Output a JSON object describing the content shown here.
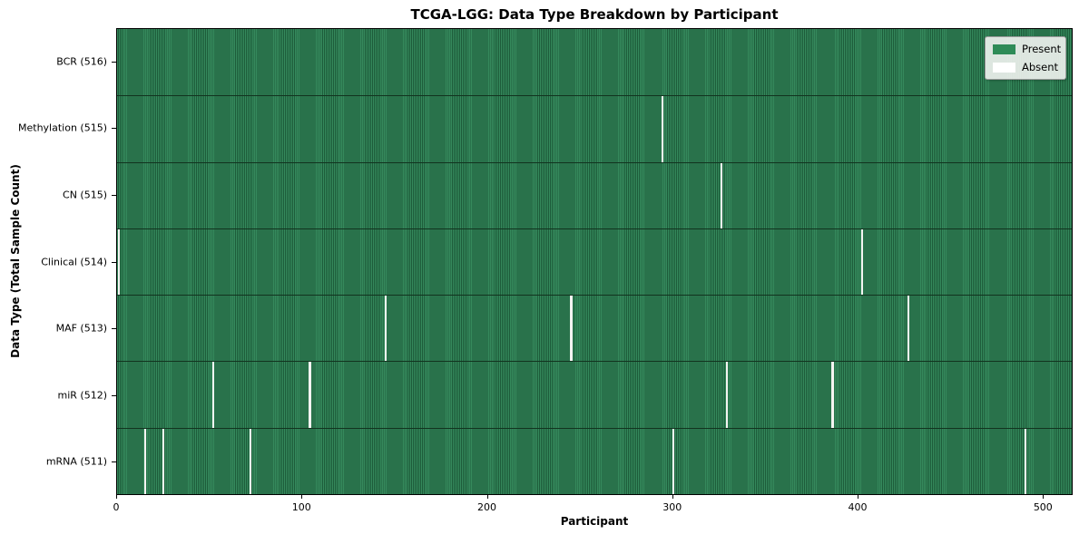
{
  "title": "TCGA-LGG: Data Type Breakdown by Participant",
  "legend": {
    "present_label": "Present",
    "absent_label": "Absent"
  },
  "colors": {
    "present": "#2e8b57",
    "present_stripe_dark": "#1d5c3a",
    "absent": "#f4f4f2",
    "row_divider": "#12331f"
  },
  "chart_data": {
    "type": "heatmap",
    "title": "TCGA-LGG: Data Type Breakdown by Participant",
    "xlabel": "Participant",
    "ylabel": "Data Type (Total Sample Count)",
    "xlim": [
      0,
      516
    ],
    "x_ticks": [
      0,
      100,
      200,
      300,
      400,
      500
    ],
    "n_participants": 516,
    "grid": false,
    "legend_entries": [
      "Present",
      "Absent"
    ],
    "legend_position": "upper right",
    "rows": [
      {
        "label": "BCR (516)",
        "total_samples": 516,
        "absent_participants": []
      },
      {
        "label": "Methylation (515)",
        "total_samples": 515,
        "absent_participants": [
          294
        ]
      },
      {
        "label": "CN (515)",
        "total_samples": 515,
        "absent_participants": [
          326
        ]
      },
      {
        "label": "Clinical (514)",
        "total_samples": 514,
        "absent_participants": [
          1,
          402
        ]
      },
      {
        "label": "MAF (513)",
        "total_samples": 513,
        "absent_participants": [
          145,
          245,
          427
        ]
      },
      {
        "label": "miR (512)",
        "total_samples": 512,
        "absent_participants": [
          52,
          104,
          329,
          386
        ]
      },
      {
        "label": "mRNA (511)",
        "total_samples": 511,
        "absent_participants": [
          15,
          25,
          72,
          300,
          490
        ]
      }
    ]
  }
}
